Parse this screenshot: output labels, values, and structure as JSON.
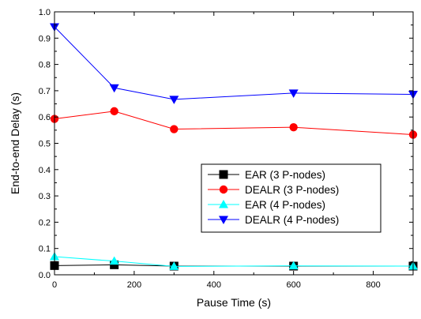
{
  "chart_data": {
    "type": "line",
    "xlabel": "Pause Time (s)",
    "ylabel": "End-to-end Delay (s)",
    "xlim": [
      0,
      900
    ],
    "ylim": [
      0.0,
      1.0
    ],
    "xticks": [
      0,
      200,
      400,
      600,
      800
    ],
    "yticks": [
      0.0,
      0.1,
      0.2,
      0.3,
      0.4,
      0.5,
      0.6,
      0.7,
      0.8,
      0.9,
      1.0
    ],
    "xtick_labels": [
      "0",
      "200",
      "400",
      "600",
      "800"
    ],
    "ytick_labels": [
      "0.0",
      "0.1",
      "0.2",
      "0.3",
      "0.4",
      "0.5",
      "0.6",
      "0.7",
      "0.8",
      "0.9",
      "1.0"
    ],
    "grid": false,
    "legend_position": "center-right",
    "series": [
      {
        "name": "EAR (3 P-nodes)",
        "color": "#000000",
        "marker": "square",
        "x": [
          0,
          150,
          300,
          600,
          900
        ],
        "y": [
          0.035,
          0.038,
          0.033,
          0.033,
          0.033
        ]
      },
      {
        "name": "DEALR (3 P-nodes)",
        "color": "#ff0000",
        "marker": "circle",
        "x": [
          0,
          150,
          300,
          600,
          900
        ],
        "y": [
          0.593,
          0.622,
          0.554,
          0.561,
          0.533
        ]
      },
      {
        "name": "EAR (4 P-nodes)",
        "color": "#00ffff",
        "marker": "triangle-up",
        "x": [
          0,
          150,
          300,
          600,
          900
        ],
        "y": [
          0.069,
          0.052,
          0.032,
          0.034,
          0.033
        ]
      },
      {
        "name": "DEALR (4 P-nodes)",
        "color": "#0000ff",
        "marker": "triangle-down",
        "x": [
          0,
          150,
          300,
          600,
          900
        ],
        "y": [
          0.943,
          0.711,
          0.667,
          0.691,
          0.686
        ]
      }
    ]
  }
}
